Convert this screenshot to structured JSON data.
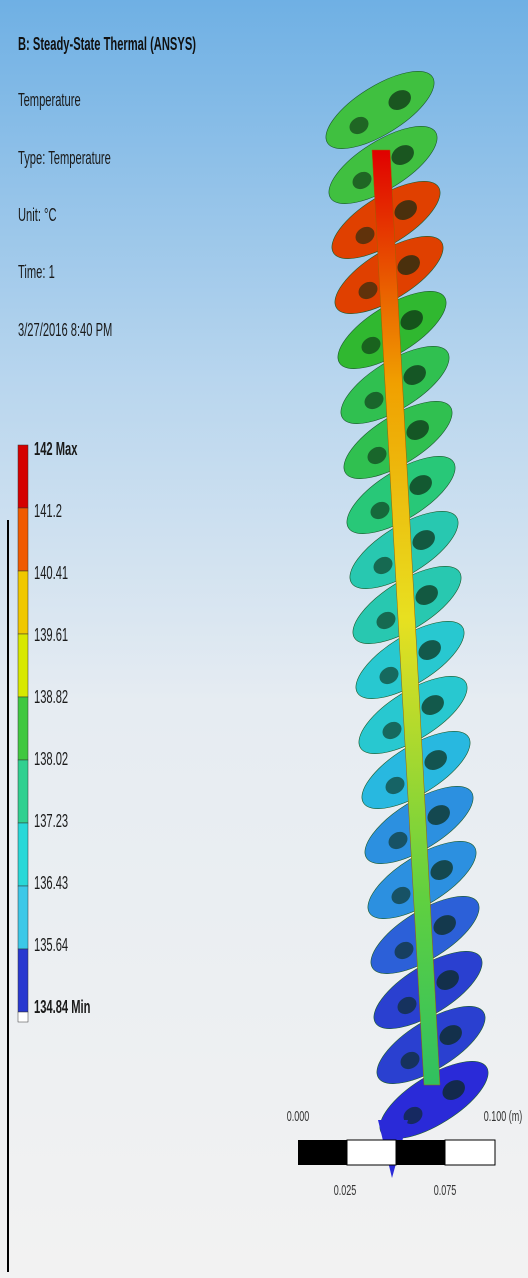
{
  "header": {
    "title": "B: Steady-State Thermal (ANSYS)",
    "lines": [
      "Temperature",
      "Type: Temperature",
      "Unit: °C",
      "Time: 1",
      "3/27/2016 8:40 PM"
    ]
  },
  "legend": {
    "labels": [
      "142 Max",
      "141.2",
      "140.41",
      "139.61",
      "138.82",
      "138.02",
      "137.23",
      "136.43",
      "135.64",
      "134.84 Min"
    ]
  },
  "scale_bar": {
    "labels": [
      "0.000",
      "0.100 (m)",
      "0.025",
      "0.075"
    ]
  }
}
